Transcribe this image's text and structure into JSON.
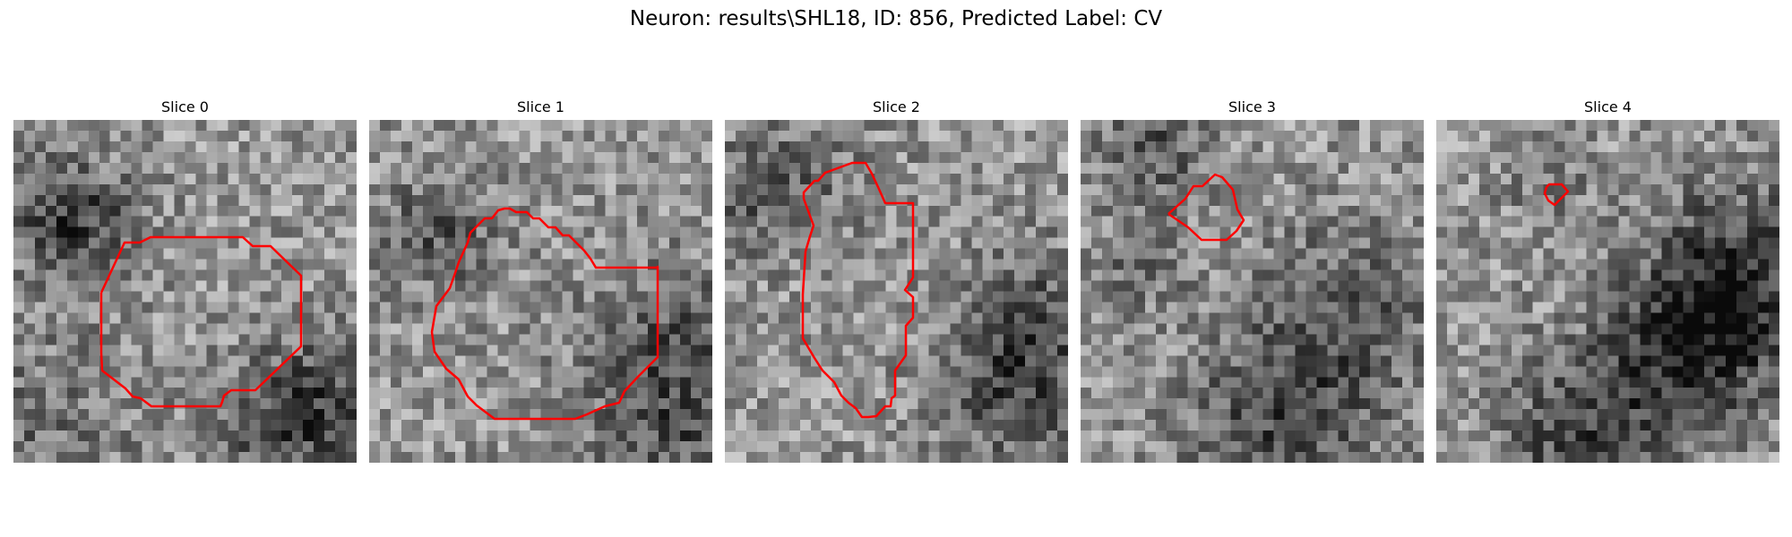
{
  "figure": {
    "title": "Neuron: results\\SHL18, ID: 856, Predicted Label: CV"
  },
  "panels": [
    {
      "title": "Slice 0"
    },
    {
      "title": "Slice 1"
    },
    {
      "title": "Slice 2"
    },
    {
      "title": "Slice 3"
    },
    {
      "title": "Slice 4"
    }
  ],
  "style": {
    "contour_color": "#ff0000",
    "colormap": "gray"
  }
}
